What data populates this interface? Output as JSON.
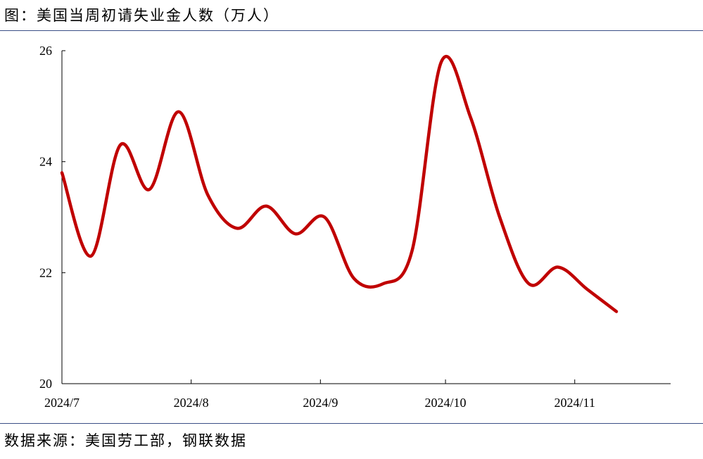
{
  "title": "图：美国当周初请失业金人数（万人）",
  "source": "数据来源：美国劳工部，钢联数据",
  "chart_data": {
    "type": "line",
    "title": "",
    "xlabel": "",
    "ylabel": "",
    "ylim": [
      20,
      26
    ],
    "yticks": [
      20,
      22,
      24,
      26
    ],
    "xlim": [
      "2024-07-01",
      "2024-11-24"
    ],
    "xticks": [
      {
        "date": "2024-07-01",
        "label": "2024/7"
      },
      {
        "date": "2024-08-01",
        "label": "2024/8"
      },
      {
        "date": "2024-09-01",
        "label": "2024/9"
      },
      {
        "date": "2024-10-01",
        "label": "2024/10"
      },
      {
        "date": "2024-11-01",
        "label": "2024/11"
      }
    ],
    "grid": false,
    "series": [
      {
        "color": "#c00000",
        "points": [
          {
            "x": "2024-07-01",
            "y": 23.8
          },
          {
            "x": "2024-07-08",
            "y": 22.3
          },
          {
            "x": "2024-07-15",
            "y": 24.3
          },
          {
            "x": "2024-07-22",
            "y": 23.5
          },
          {
            "x": "2024-07-29",
            "y": 24.9
          },
          {
            "x": "2024-08-05",
            "y": 23.4
          },
          {
            "x": "2024-08-12",
            "y": 22.8
          },
          {
            "x": "2024-08-19",
            "y": 23.2
          },
          {
            "x": "2024-08-26",
            "y": 22.7
          },
          {
            "x": "2024-09-02",
            "y": 23.0
          },
          {
            "x": "2024-09-09",
            "y": 21.9
          },
          {
            "x": "2024-09-16",
            "y": 21.8
          },
          {
            "x": "2024-09-23",
            "y": 22.4
          },
          {
            "x": "2024-09-30",
            "y": 25.8
          },
          {
            "x": "2024-10-07",
            "y": 24.8
          },
          {
            "x": "2024-10-14",
            "y": 23.0
          },
          {
            "x": "2024-10-21",
            "y": 21.8
          },
          {
            "x": "2024-10-28",
            "y": 22.1
          },
          {
            "x": "2024-11-04",
            "y": 21.7
          },
          {
            "x": "2024-11-11",
            "y": 21.3
          }
        ]
      }
    ]
  }
}
